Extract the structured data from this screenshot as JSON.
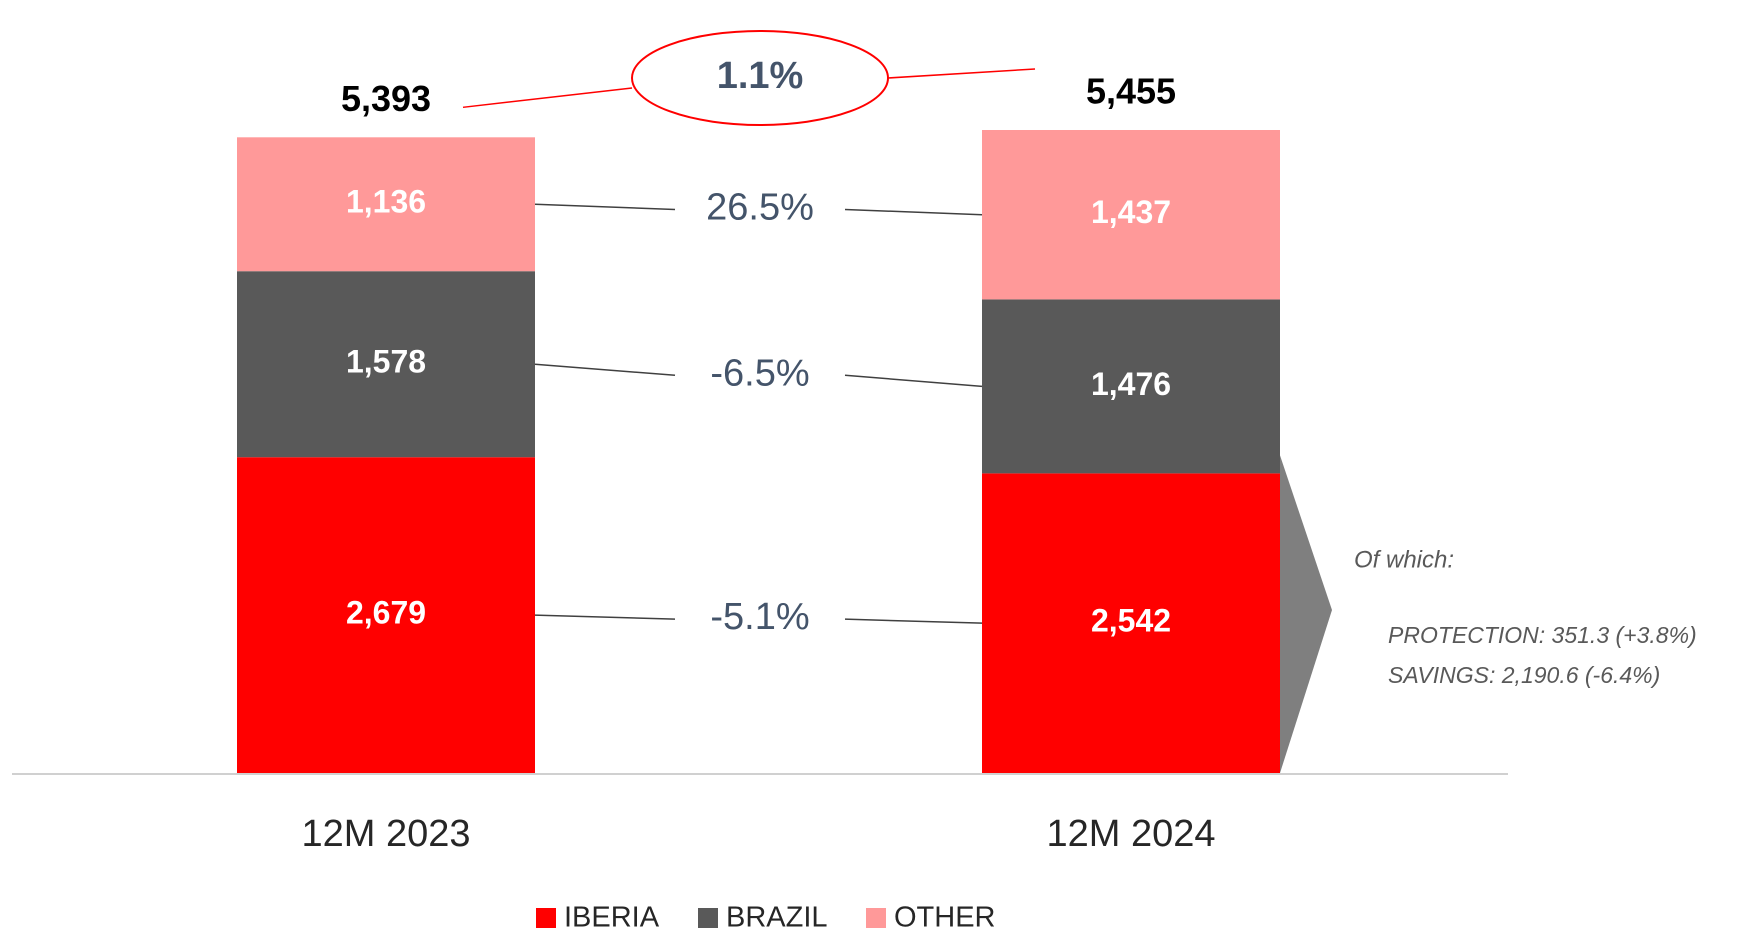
{
  "chart_data": {
    "type": "stacked_bar",
    "categories": [
      "12M 2023",
      "12M 2024"
    ],
    "series": [
      {
        "name": "IBERIA",
        "color": "#ff0000",
        "values": [
          2679,
          2542
        ],
        "value_labels": [
          "2,679",
          "2,542"
        ],
        "change_label": "-5.1%"
      },
      {
        "name": "BRAZIL",
        "color": "#595959",
        "values": [
          1578,
          1476
        ],
        "value_labels": [
          "1,578",
          "1,476"
        ],
        "change_label": "-6.5%"
      },
      {
        "name": "OTHER",
        "color": "#ff9999",
        "values": [
          1136,
          1437
        ],
        "value_labels": [
          "1,136",
          "1,437"
        ],
        "change_label": "26.5%"
      }
    ],
    "totals": [
      5393,
      5455
    ],
    "total_labels": [
      "5,393",
      "5,455"
    ],
    "total_change": "1.1%",
    "note": {
      "title": "Of which:",
      "lines": [
        "PROTECTION: 351.3 (+3.8%)",
        "SAVINGS: 2,190.6  (-6.4%)"
      ]
    }
  }
}
